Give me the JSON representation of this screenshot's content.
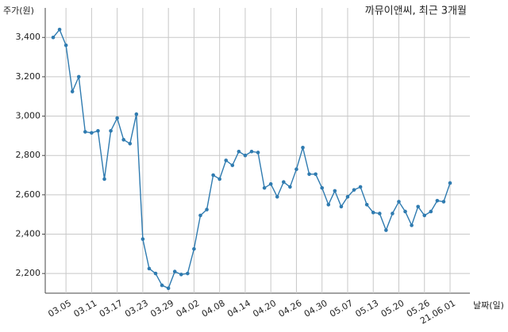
{
  "chart_data": {
    "type": "line",
    "title": "까뮤이앤씨, 최근 3개월",
    "y_label": "주가(원)",
    "x_label": "날짜(일)",
    "categories": [
      null,
      null,
      "03.05",
      null,
      null,
      null,
      "03.11",
      null,
      null,
      null,
      "03.17",
      null,
      null,
      null,
      "03.23",
      null,
      null,
      null,
      "03.29",
      null,
      null,
      null,
      "04.02",
      null,
      null,
      null,
      "04.08",
      null,
      null,
      null,
      "04.14",
      null,
      null,
      null,
      "04.20",
      null,
      null,
      null,
      "04.26",
      null,
      null,
      null,
      "04.30",
      null,
      null,
      null,
      "05.07",
      null,
      null,
      null,
      "05.13",
      null,
      null,
      null,
      "05.20",
      null,
      null,
      null,
      "05.26",
      null,
      null,
      null,
      "21.06.01"
    ],
    "series": [
      {
        "name": "주가",
        "color": "#2f7bb0",
        "values": [
          3400,
          3440,
          3360,
          3125,
          3200,
          2920,
          2915,
          2925,
          2680,
          2925,
          2990,
          2880,
          2860,
          3010,
          2375,
          2225,
          2200,
          2140,
          2125,
          2210,
          2195,
          2200,
          2325,
          2495,
          2525,
          2700,
          2680,
          2775,
          2750,
          2820,
          2800,
          2820,
          2815,
          2635,
          2655,
          2590,
          2665,
          2640,
          2730,
          2840,
          2705,
          2705,
          2635,
          2550,
          2620,
          2540,
          2590,
          2625,
          2640,
          2550,
          2510,
          2505,
          2420,
          2505,
          2565,
          2515,
          2445,
          2540,
          2495,
          2515,
          2570,
          2565,
          2660
        ]
      }
    ],
    "ylim": [
      2100,
      3550
    ],
    "yticks": [
      {
        "value": 2200,
        "label": "2,200"
      },
      {
        "value": 2400,
        "label": "2,400"
      },
      {
        "value": 2600,
        "label": "2,600"
      },
      {
        "value": 2800,
        "label": "2,800"
      },
      {
        "value": 3000,
        "label": "3,000"
      },
      {
        "value": 3200,
        "label": "3,200"
      },
      {
        "value": 3400,
        "label": "3,400"
      }
    ],
    "grid": true
  }
}
